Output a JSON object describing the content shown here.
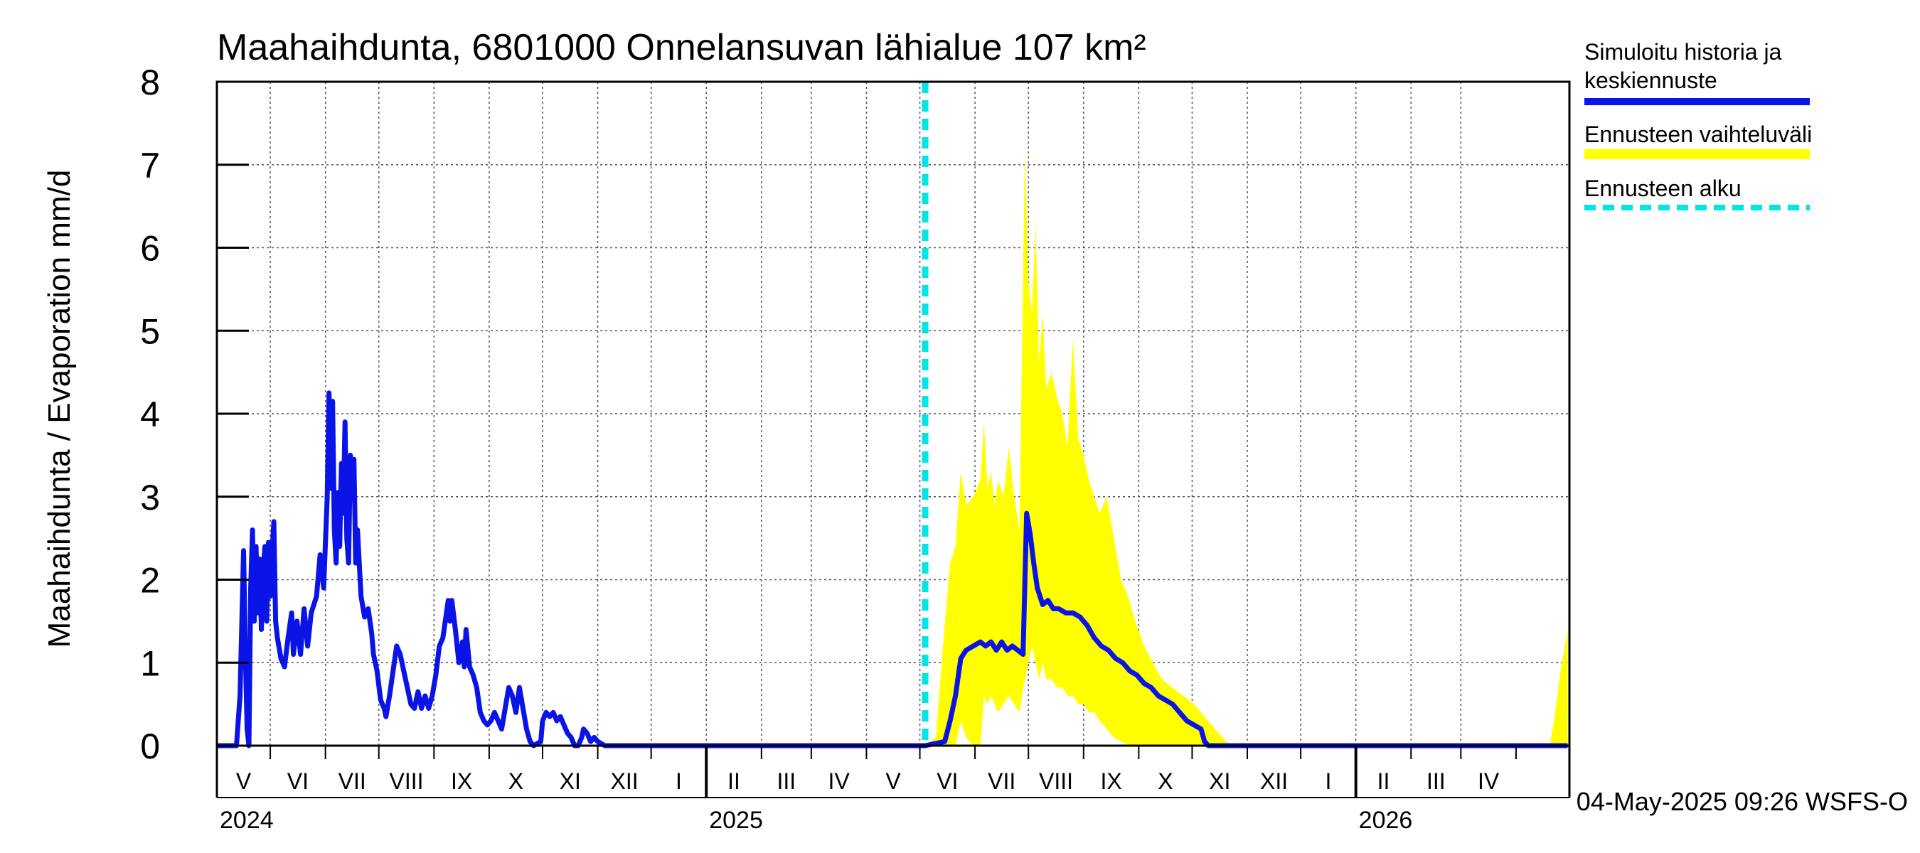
{
  "chart_data": {
    "type": "area",
    "title": "Maahaihdunta, 6801000 Onnelansuvan lähialue 107 km²",
    "ylabel": "Maahaihdunta / Evaporation   mm/d",
    "ylim": [
      0,
      8
    ],
    "yticks": [
      "0",
      "1",
      "2",
      "3",
      "4",
      "5",
      "6",
      "7",
      "8"
    ],
    "grid": true,
    "legend_position": "right",
    "x_axis": {
      "start": "2024-04-01",
      "end": "2026-04-30",
      "month_labels": [
        "V",
        "VI",
        "VII",
        "VIII",
        "IX",
        "X",
        "XI",
        "XII",
        "I",
        "II",
        "III",
        "IV",
        "V",
        "VI",
        "VII",
        "VIII",
        "IX",
        "X",
        "XI",
        "XII",
        "I",
        "II",
        "III",
        "IV"
      ],
      "year_labels": [
        {
          "label": "2024",
          "date": "2024-04-01"
        },
        {
          "label": "2025",
          "date": "2025-01-01"
        },
        {
          "label": "2026",
          "date": "2026-01-01"
        }
      ]
    },
    "forecast_start": "2025-05-04",
    "series": [
      {
        "name": "Simuloitu historia ja keskiennuste",
        "color": "#0a14e6",
        "points": [
          [
            "2024-04-01",
            0
          ],
          [
            "2024-04-12",
            0
          ],
          [
            "2024-04-14",
            0.6
          ],
          [
            "2024-04-16",
            2.35
          ],
          [
            "2024-04-17",
            1.1
          ],
          [
            "2024-04-18",
            0.2
          ],
          [
            "2024-04-19",
            0
          ],
          [
            "2024-04-20",
            1.9
          ],
          [
            "2024-04-21",
            2.6
          ],
          [
            "2024-04-22",
            1.5
          ],
          [
            "2024-04-23",
            2.4
          ],
          [
            "2024-04-24",
            1.6
          ],
          [
            "2024-04-25",
            2.25
          ],
          [
            "2024-04-26",
            1.4
          ],
          [
            "2024-04-27",
            2.1
          ],
          [
            "2024-04-28",
            2.4
          ],
          [
            "2024-04-29",
            1.5
          ],
          [
            "2024-04-30",
            2.45
          ],
          [
            "2024-05-01",
            1.8
          ],
          [
            "2024-05-02",
            2.3
          ],
          [
            "2024-05-03",
            2.7
          ],
          [
            "2024-05-04",
            1.5
          ],
          [
            "2024-05-05",
            1.3
          ],
          [
            "2024-05-07",
            1.05
          ],
          [
            "2024-05-09",
            0.95
          ],
          [
            "2024-05-11",
            1.3
          ],
          [
            "2024-05-13",
            1.6
          ],
          [
            "2024-05-14",
            1.1
          ],
          [
            "2024-05-16",
            1.5
          ],
          [
            "2024-05-18",
            1.1
          ],
          [
            "2024-05-20",
            1.65
          ],
          [
            "2024-05-22",
            1.2
          ],
          [
            "2024-05-24",
            1.6
          ],
          [
            "2024-05-27",
            1.8
          ],
          [
            "2024-05-29",
            2.3
          ],
          [
            "2024-05-31",
            1.9
          ],
          [
            "2024-06-02",
            3.0
          ],
          [
            "2024-06-03",
            4.25
          ],
          [
            "2024-06-04",
            3.1
          ],
          [
            "2024-06-05",
            4.15
          ],
          [
            "2024-06-06",
            2.6
          ],
          [
            "2024-06-07",
            2.2
          ],
          [
            "2024-06-08",
            3.05
          ],
          [
            "2024-06-09",
            2.4
          ],
          [
            "2024-06-10",
            3.4
          ],
          [
            "2024-06-11",
            2.8
          ],
          [
            "2024-06-12",
            3.9
          ],
          [
            "2024-06-13",
            2.5
          ],
          [
            "2024-06-14",
            2.2
          ],
          [
            "2024-06-15",
            3.5
          ],
          [
            "2024-06-16",
            3.05
          ],
          [
            "2024-06-17",
            3.45
          ],
          [
            "2024-06-18",
            2.2
          ],
          [
            "2024-06-19",
            2.6
          ],
          [
            "2024-06-21",
            1.8
          ],
          [
            "2024-06-23",
            1.55
          ],
          [
            "2024-06-25",
            1.65
          ],
          [
            "2024-06-27",
            1.35
          ],
          [
            "2024-06-28",
            1.1
          ],
          [
            "2024-06-30",
            0.9
          ],
          [
            "2024-07-02",
            0.55
          ],
          [
            "2024-07-04",
            0.45
          ],
          [
            "2024-07-05",
            0.35
          ],
          [
            "2024-07-07",
            0.6
          ],
          [
            "2024-07-09",
            0.9
          ],
          [
            "2024-07-11",
            1.2
          ],
          [
            "2024-07-13",
            1.1
          ],
          [
            "2024-07-15",
            0.9
          ],
          [
            "2024-07-17",
            0.7
          ],
          [
            "2024-07-19",
            0.5
          ],
          [
            "2024-07-21",
            0.45
          ],
          [
            "2024-07-23",
            0.65
          ],
          [
            "2024-07-25",
            0.45
          ],
          [
            "2024-07-27",
            0.6
          ],
          [
            "2024-07-29",
            0.45
          ],
          [
            "2024-07-31",
            0.6
          ],
          [
            "2024-08-02",
            0.85
          ],
          [
            "2024-08-04",
            1.2
          ],
          [
            "2024-08-06",
            1.3
          ],
          [
            "2024-08-08",
            1.6
          ],
          [
            "2024-08-09",
            1.75
          ],
          [
            "2024-08-10",
            1.5
          ],
          [
            "2024-08-11",
            1.75
          ],
          [
            "2024-08-13",
            1.4
          ],
          [
            "2024-08-15",
            1.0
          ],
          [
            "2024-08-17",
            1.25
          ],
          [
            "2024-08-18",
            0.95
          ],
          [
            "2024-08-19",
            1.4
          ],
          [
            "2024-08-21",
            0.95
          ],
          [
            "2024-08-23",
            0.85
          ],
          [
            "2024-08-25",
            0.7
          ],
          [
            "2024-08-27",
            0.4
          ],
          [
            "2024-08-29",
            0.3
          ],
          [
            "2024-08-31",
            0.25
          ],
          [
            "2024-09-02",
            0.3
          ],
          [
            "2024-09-04",
            0.4
          ],
          [
            "2024-09-06",
            0.3
          ],
          [
            "2024-09-08",
            0.2
          ],
          [
            "2024-09-10",
            0.45
          ],
          [
            "2024-09-12",
            0.7
          ],
          [
            "2024-09-14",
            0.6
          ],
          [
            "2024-09-16",
            0.4
          ],
          [
            "2024-09-18",
            0.7
          ],
          [
            "2024-09-20",
            0.45
          ],
          [
            "2024-09-22",
            0.2
          ],
          [
            "2024-09-24",
            0.05
          ],
          [
            "2024-09-26",
            0
          ],
          [
            "2024-09-30",
            0.05
          ],
          [
            "2024-10-01",
            0.3
          ],
          [
            "2024-10-03",
            0.4
          ],
          [
            "2024-10-05",
            0.35
          ],
          [
            "2024-10-07",
            0.4
          ],
          [
            "2024-10-09",
            0.3
          ],
          [
            "2024-10-11",
            0.35
          ],
          [
            "2024-10-13",
            0.25
          ],
          [
            "2024-10-15",
            0.15
          ],
          [
            "2024-10-17",
            0.1
          ],
          [
            "2024-10-19",
            0.0
          ],
          [
            "2024-10-21",
            0.0
          ],
          [
            "2024-10-23",
            0.1
          ],
          [
            "2024-10-24",
            0.2
          ],
          [
            "2024-10-26",
            0.15
          ],
          [
            "2024-10-28",
            0.05
          ],
          [
            "2024-10-30",
            0.1
          ],
          [
            "2024-11-01",
            0.05
          ],
          [
            "2024-11-05",
            0
          ],
          [
            "2025-05-04",
            0
          ],
          [
            "2025-05-15",
            0.05
          ],
          [
            "2025-05-18",
            0.3
          ],
          [
            "2025-05-21",
            0.6
          ],
          [
            "2025-05-24",
            1.05
          ],
          [
            "2025-05-27",
            1.15
          ],
          [
            "2025-05-31",
            1.2
          ],
          [
            "2025-06-04",
            1.25
          ],
          [
            "2025-06-07",
            1.2
          ],
          [
            "2025-06-10",
            1.25
          ],
          [
            "2025-06-13",
            1.15
          ],
          [
            "2025-06-16",
            1.25
          ],
          [
            "2025-06-19",
            1.15
          ],
          [
            "2025-06-22",
            1.2
          ],
          [
            "2025-06-25",
            1.15
          ],
          [
            "2025-06-28",
            1.1
          ],
          [
            "2025-06-30",
            2.8
          ],
          [
            "2025-07-02",
            2.55
          ],
          [
            "2025-07-04",
            2.2
          ],
          [
            "2025-07-06",
            1.9
          ],
          [
            "2025-07-09",
            1.7
          ],
          [
            "2025-07-12",
            1.75
          ],
          [
            "2025-07-15",
            1.65
          ],
          [
            "2025-07-18",
            1.65
          ],
          [
            "2025-07-22",
            1.6
          ],
          [
            "2025-07-26",
            1.6
          ],
          [
            "2025-07-30",
            1.55
          ],
          [
            "2025-08-03",
            1.45
          ],
          [
            "2025-08-07",
            1.3
          ],
          [
            "2025-08-11",
            1.2
          ],
          [
            "2025-08-15",
            1.15
          ],
          [
            "2025-08-19",
            1.05
          ],
          [
            "2025-08-23",
            1.0
          ],
          [
            "2025-08-27",
            0.9
          ],
          [
            "2025-08-31",
            0.85
          ],
          [
            "2025-09-04",
            0.75
          ],
          [
            "2025-09-08",
            0.7
          ],
          [
            "2025-09-12",
            0.6
          ],
          [
            "2025-09-16",
            0.55
          ],
          [
            "2025-09-20",
            0.5
          ],
          [
            "2025-09-24",
            0.4
          ],
          [
            "2025-09-28",
            0.3
          ],
          [
            "2025-10-02",
            0.25
          ],
          [
            "2025-10-06",
            0.2
          ],
          [
            "2025-10-08",
            0.05
          ],
          [
            "2025-10-10",
            0
          ],
          [
            "2026-04-30",
            0
          ]
        ]
      },
      {
        "name": "Ennusteen vaihteluväli",
        "color": "#ffff00",
        "points": [
          [
            "2025-05-04",
            0,
            0
          ],
          [
            "2025-05-10",
            0,
            0.1
          ],
          [
            "2025-05-14",
            0,
            1.2
          ],
          [
            "2025-05-18",
            0,
            2.2
          ],
          [
            "2025-05-21",
            0,
            2.4
          ],
          [
            "2025-05-24",
            0.3,
            3.3
          ],
          [
            "2025-05-27",
            0.1,
            2.9
          ],
          [
            "2025-05-31",
            0,
            3.0
          ],
          [
            "2025-06-04",
            0,
            3.2
          ],
          [
            "2025-06-06",
            0.6,
            3.9
          ],
          [
            "2025-06-08",
            0.5,
            3.1
          ],
          [
            "2025-06-10",
            0.6,
            3.3
          ],
          [
            "2025-06-12",
            0.5,
            2.9
          ],
          [
            "2025-06-14",
            0.4,
            3.2
          ],
          [
            "2025-06-17",
            0.5,
            3.0
          ],
          [
            "2025-06-20",
            0.6,
            3.6
          ],
          [
            "2025-06-23",
            0.5,
            3.0
          ],
          [
            "2025-06-26",
            0.4,
            2.6
          ],
          [
            "2025-06-29",
            0.8,
            7.2
          ],
          [
            "2025-07-01",
            1.0,
            5.6
          ],
          [
            "2025-07-03",
            1.2,
            5.2
          ],
          [
            "2025-07-05",
            1.0,
            6.3
          ],
          [
            "2025-07-07",
            0.8,
            4.6
          ],
          [
            "2025-07-09",
            1.0,
            5.2
          ],
          [
            "2025-07-11",
            0.8,
            4.3
          ],
          [
            "2025-07-14",
            0.8,
            4.5
          ],
          [
            "2025-07-17",
            0.7,
            4.2
          ],
          [
            "2025-07-20",
            0.7,
            4.0
          ],
          [
            "2025-07-23",
            0.6,
            3.6
          ],
          [
            "2025-07-26",
            0.6,
            4.9
          ],
          [
            "2025-07-29",
            0.5,
            3.7
          ],
          [
            "2025-08-01",
            0.5,
            3.5
          ],
          [
            "2025-08-04",
            0.4,
            3.2
          ],
          [
            "2025-08-07",
            0.4,
            3.0
          ],
          [
            "2025-08-10",
            0.3,
            2.8
          ],
          [
            "2025-08-14",
            0.2,
            3.0
          ],
          [
            "2025-08-18",
            0.1,
            2.5
          ],
          [
            "2025-08-22",
            0.05,
            2.0
          ],
          [
            "2025-08-26",
            0,
            1.8
          ],
          [
            "2025-08-30",
            0,
            1.5
          ],
          [
            "2025-09-04",
            0,
            1.2
          ],
          [
            "2025-09-09",
            0,
            1.0
          ],
          [
            "2025-09-14",
            0,
            0.8
          ],
          [
            "2025-09-20",
            0,
            0.7
          ],
          [
            "2025-09-26",
            0,
            0.6
          ],
          [
            "2025-10-02",
            0,
            0.5
          ],
          [
            "2025-10-08",
            0,
            0.35
          ],
          [
            "2025-10-14",
            0,
            0.2
          ],
          [
            "2025-10-20",
            0,
            0.05
          ],
          [
            "2025-10-25",
            0,
            0
          ],
          [
            "2026-04-20",
            0,
            0
          ],
          [
            "2026-04-23",
            0,
            0.4
          ],
          [
            "2026-04-26",
            0,
            0.9
          ],
          [
            "2026-04-30",
            0,
            1.4
          ]
        ]
      },
      {
        "name": "Ennusteen alku",
        "color": "#00e5e5"
      }
    ]
  },
  "footer": {
    "timestamp": "04-May-2025 09:26 WSFS-O"
  }
}
